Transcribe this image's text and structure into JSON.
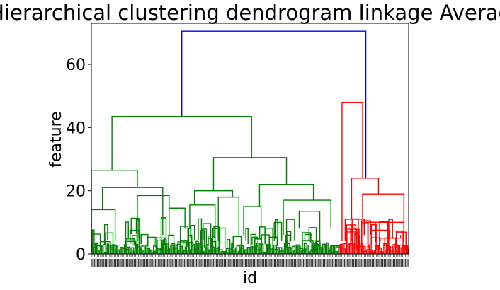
{
  "chart_data": {
    "type": "dendrogram",
    "title": "Hierarchical clustering dendrogram linkage Average",
    "xlabel": "id",
    "ylabel": "feature",
    "ylim": [
      0,
      73
    ],
    "yticks": [
      0,
      20,
      40,
      60
    ],
    "grid": false,
    "colors": {
      "root": "#0000ff",
      "cluster_1": "#008000",
      "cluster_2": "#ff0000"
    },
    "leaf_count_approx": 240,
    "leaf_id_labels_legible": false,
    "clusters": [
      {
        "color": "#008000",
        "leaf_span_fraction": [
          0.0,
          0.78
        ],
        "merge_height": 43.5
      },
      {
        "color": "#ff0000",
        "leaf_span_fraction": [
          0.78,
          1.0
        ],
        "merge_height": 48
      }
    ],
    "merges": [
      {
        "left_x": 0.285,
        "right_x": 0.865,
        "height": 70.5,
        "color": "#0000ff"
      },
      {
        "left_x": 0.065,
        "right_x": 0.505,
        "height": 43.5,
        "color": "#008000"
      },
      {
        "left_x": 0.0,
        "right_x": 0.145,
        "height": 26.5,
        "color": "#008000"
      },
      {
        "left_x": 0.035,
        "right_x": 0.225,
        "height": 21.0,
        "color": "#008000"
      },
      {
        "left_x": 0.385,
        "right_x": 0.615,
        "height": 30.5,
        "color": "#008000"
      },
      {
        "left_x": 0.325,
        "right_x": 0.445,
        "height": 20.0,
        "color": "#008000"
      },
      {
        "left_x": 0.53,
        "right_x": 0.7,
        "height": 22.0,
        "color": "#008000"
      },
      {
        "left_x": 0.605,
        "right_x": 0.755,
        "height": 17.0,
        "color": "#008000"
      },
      {
        "left_x": 0.0,
        "right_x": 0.075,
        "height": 14.0,
        "color": "#008000"
      },
      {
        "left_x": 0.145,
        "right_x": 0.245,
        "height": 18.5,
        "color": "#008000"
      },
      {
        "left_x": 0.245,
        "right_x": 0.295,
        "height": 14.5,
        "color": "#008000"
      },
      {
        "left_x": 0.31,
        "right_x": 0.39,
        "height": 15.5,
        "color": "#008000"
      },
      {
        "left_x": 0.4,
        "right_x": 0.465,
        "height": 18.0,
        "color": "#008000"
      },
      {
        "left_x": 0.48,
        "right_x": 0.535,
        "height": 15.0,
        "color": "#008000"
      },
      {
        "left_x": 0.655,
        "right_x": 0.72,
        "height": 13.5,
        "color": "#008000"
      },
      {
        "left_x": 0.79,
        "right_x": 0.855,
        "height": 48.0,
        "color": "#ff0000"
      },
      {
        "left_x": 0.82,
        "right_x": 0.905,
        "height": 24.0,
        "color": "#ff0000"
      },
      {
        "left_x": 0.855,
        "right_x": 0.985,
        "height": 19.0,
        "color": "#ff0000"
      },
      {
        "left_x": 0.8,
        "right_x": 0.86,
        "height": 11.0,
        "color": "#ff0000"
      },
      {
        "left_x": 0.86,
        "right_x": 0.985,
        "height": 10.0,
        "color": "#ff0000"
      },
      {
        "left_x": 0.88,
        "right_x": 0.94,
        "height": 7.5,
        "color": "#ff0000"
      },
      {
        "left_x": 0.91,
        "right_x": 0.975,
        "height": 5.0,
        "color": "#ff0000"
      }
    ]
  }
}
